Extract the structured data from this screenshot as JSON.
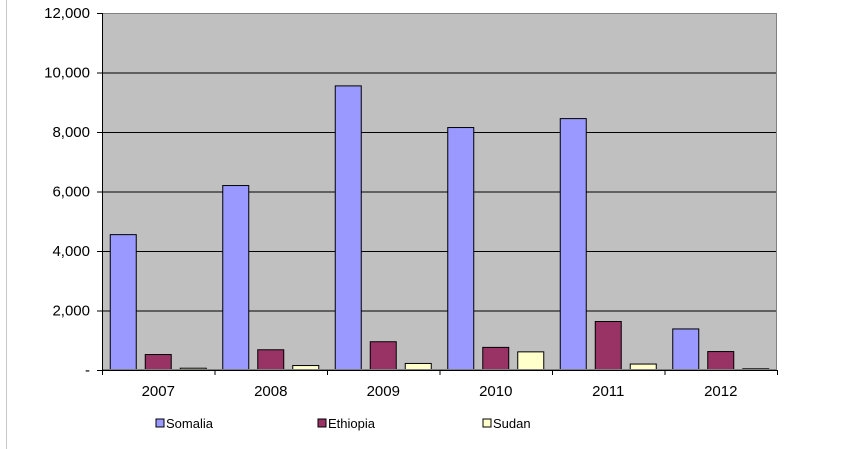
{
  "chart_data": {
    "type": "bar",
    "title": "",
    "xlabel": "",
    "ylabel": "",
    "categories": [
      "2007",
      "2008",
      "2009",
      "2010",
      "2011",
      "2012"
    ],
    "ylim": [
      0,
      12000
    ],
    "yticks": [
      0,
      2000,
      4000,
      6000,
      8000,
      10000,
      12000
    ],
    "ytick_labels": [
      "-",
      "2,000",
      "4,000",
      "6,000",
      "8,000",
      "10,000",
      "12,000"
    ],
    "grid": true,
    "plot_background": "#c0c0c0",
    "legend_position": "bottom",
    "series": [
      {
        "name": "Somalia",
        "color": "#9999ff",
        "values": [
          4550,
          6200,
          9550,
          8150,
          8450,
          1380
        ]
      },
      {
        "name": "Ethiopia",
        "color": "#993366",
        "values": [
          520,
          680,
          950,
          760,
          1630,
          620
        ]
      },
      {
        "name": "Sudan",
        "color": "#ffffcc",
        "values": [
          60,
          150,
          220,
          610,
          200,
          40
        ]
      }
    ]
  }
}
